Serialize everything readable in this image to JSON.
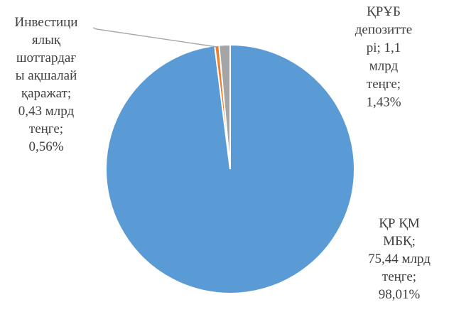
{
  "chart_data": {
    "type": "pie",
    "title_fragment": "",
    "slices": [
      {
        "name": "ҚР ҚМ МБҚ",
        "value_mlrd": 75.44,
        "percent": 98.01,
        "color": "#5B9BD5",
        "label_lines": [
          "ҚР ҚМ",
          "МБҚ;",
          "75,44 млрд",
          "теңге;",
          "98,01%"
        ]
      },
      {
        "name": "Инвестициялық шоттардағы ақшалай қаражат",
        "value_mlrd": 0.43,
        "percent": 0.56,
        "color": "#ED7D31",
        "label_lines": [
          "Инвестици",
          "ялық",
          "шоттардағ",
          "ы ақшалай",
          "қаражат;",
          "0,43 млрд",
          "теңге;",
          "0,56%"
        ]
      },
      {
        "name": "ҚРҰБ депозиттері",
        "value_mlrd": 1.1,
        "percent": 1.43,
        "color": "#A5A5A5",
        "label_lines": [
          "ҚРҰБ",
          "депозитте",
          "рі; 1,1",
          "млрд",
          "теңге;",
          "1,43%"
        ]
      }
    ]
  }
}
